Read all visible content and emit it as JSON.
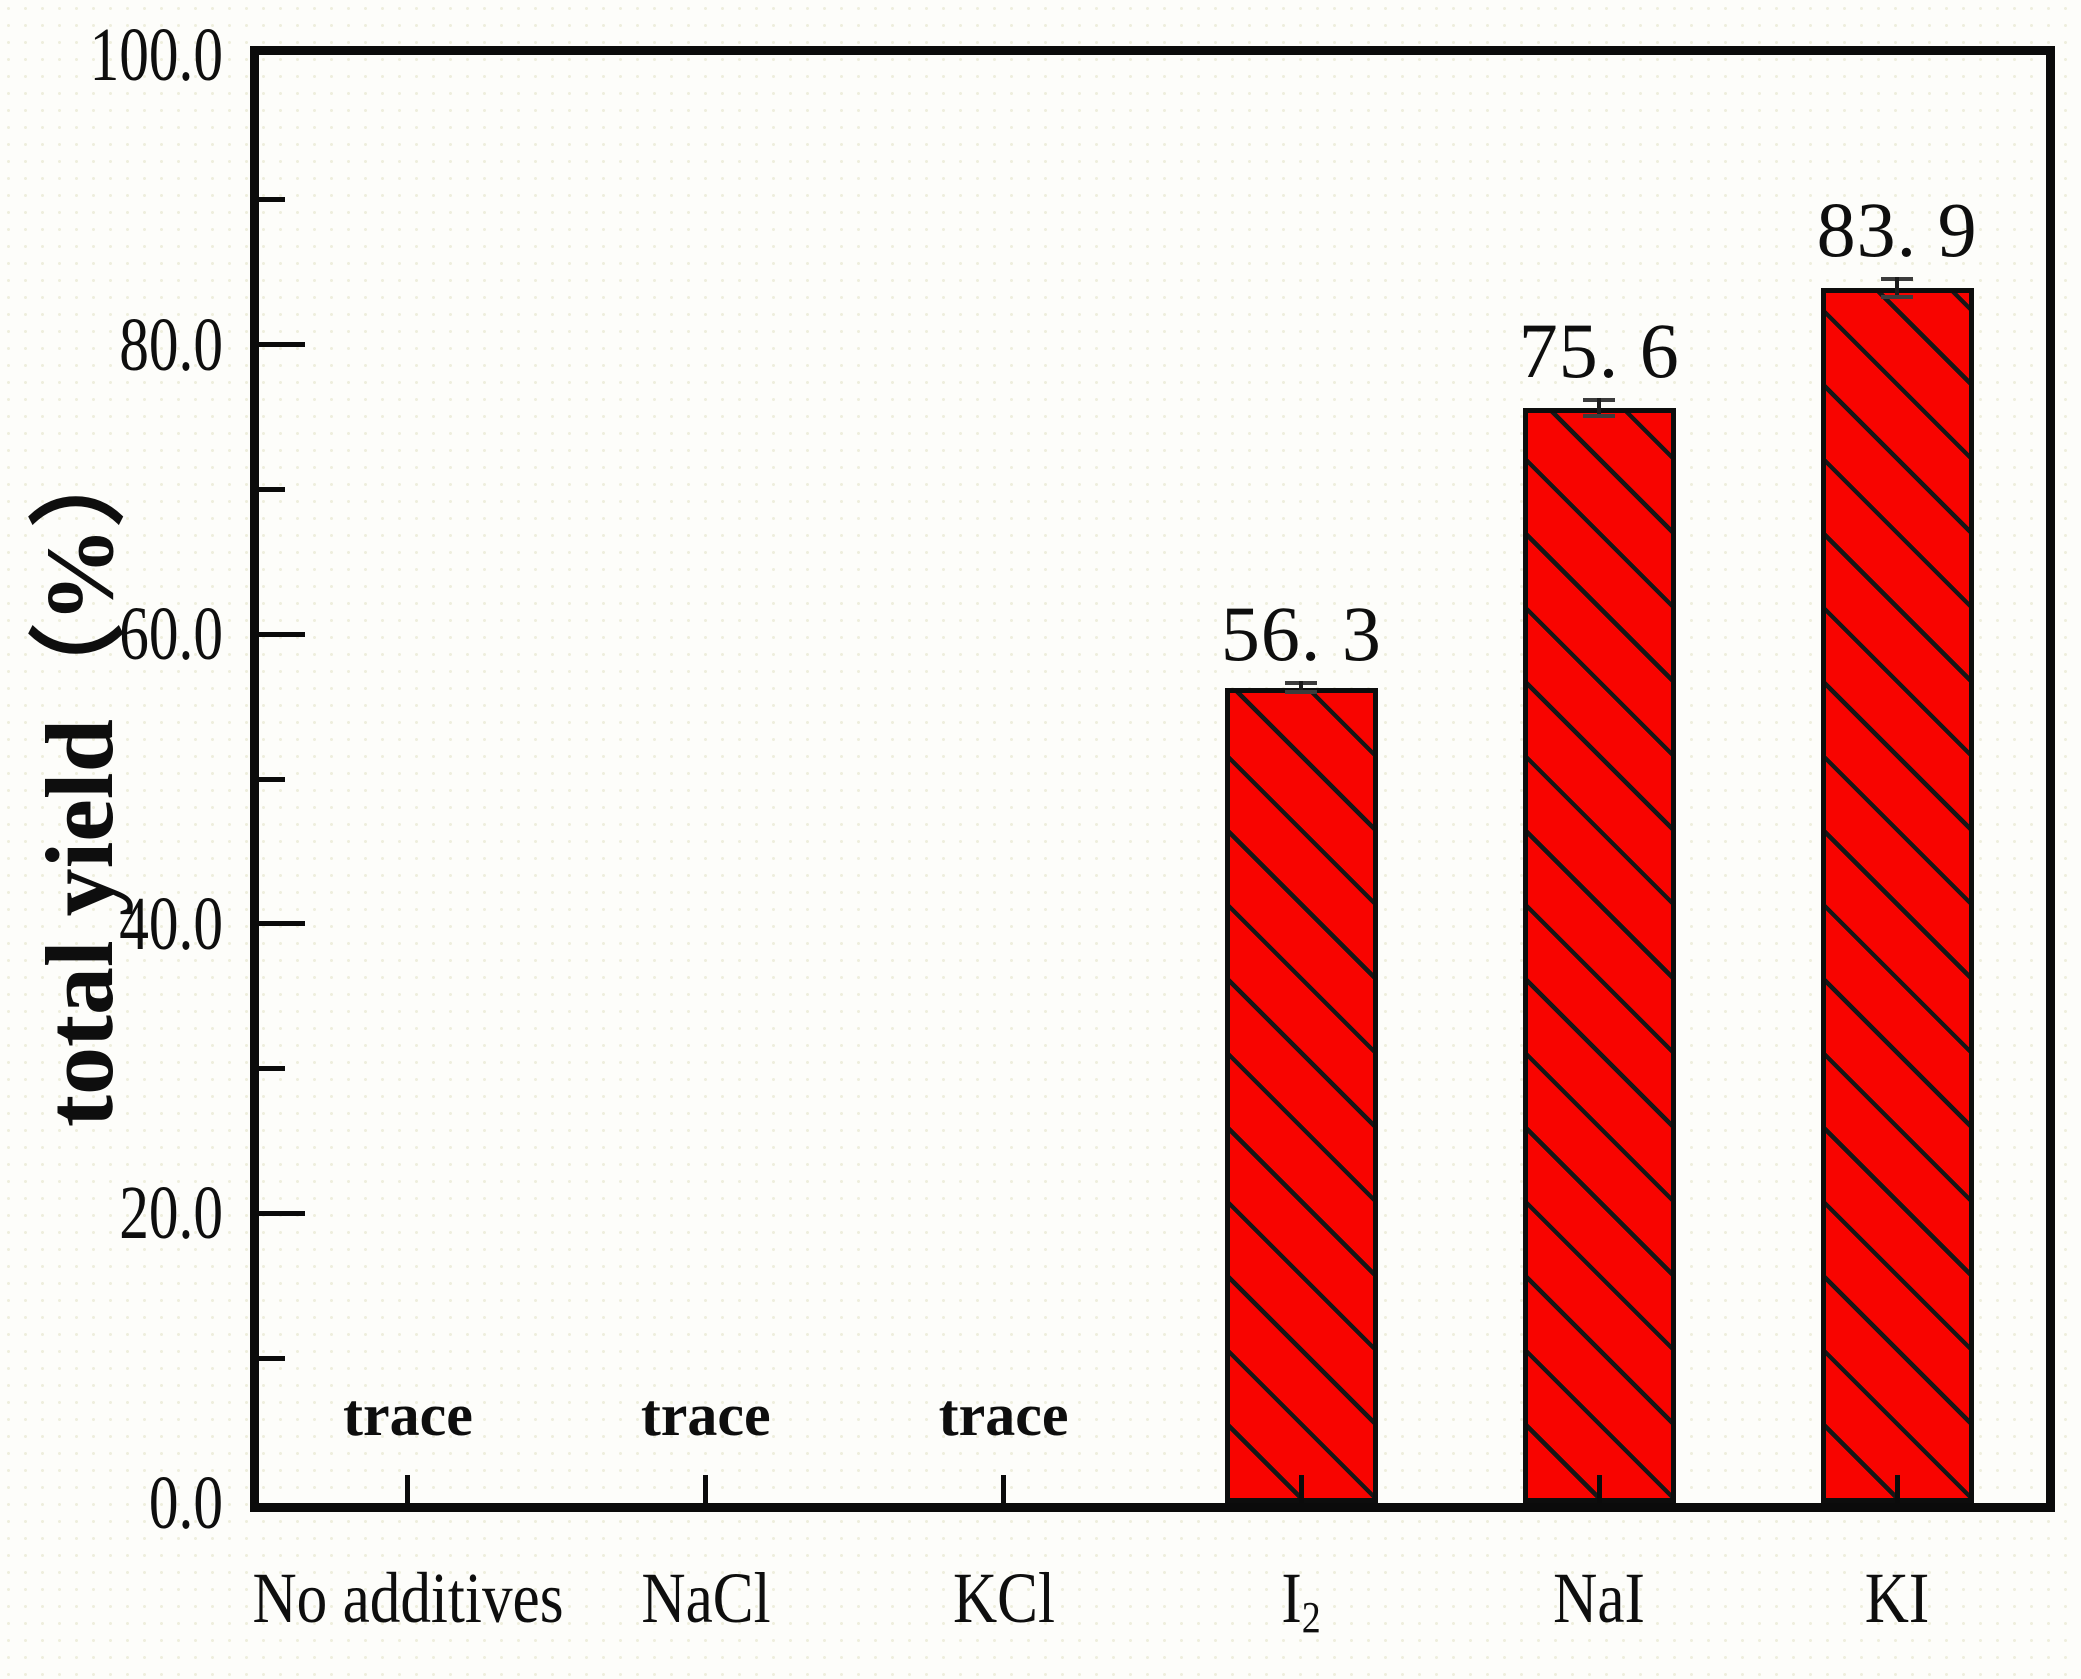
{
  "figure": {
    "background": "#fdfdfa",
    "frame_color": "#0b0b0b"
  },
  "chart_data": {
    "type": "bar",
    "title": "",
    "xlabel": "",
    "ylabel": "total yield（%）",
    "ylim": [
      0,
      100
    ],
    "ytick_major_step": 20,
    "ytick_minor_step": 10,
    "grid": false,
    "legend": null,
    "categories": [
      "No additives",
      "NaCl",
      "KCl",
      "I2",
      "NaI",
      "KI"
    ],
    "values": [
      null,
      null,
      null,
      56.3,
      75.6,
      83.9
    ],
    "errors": [
      null,
      null,
      null,
      0.3,
      0.55,
      0.6
    ],
    "bar_labels": [
      null,
      null,
      null,
      "56. 3",
      "75. 6",
      "83. 9"
    ],
    "zero_bar_annotation": "trace",
    "bar_color": "#f80400",
    "hatch": "diagonal-down-black",
    "bar_border_color": "#0d0d0d"
  },
  "y_axis": {
    "title": "total yield（%）",
    "tick_labels": [
      "100.0",
      "80.0",
      "60.0",
      "40.0",
      "20.0",
      "0.0"
    ]
  },
  "x_axis": {
    "labels": [
      {
        "main": "No additives",
        "sub": ""
      },
      {
        "main": "NaCl",
        "sub": ""
      },
      {
        "main": "KCl",
        "sub": ""
      },
      {
        "main": "I",
        "sub": "2"
      },
      {
        "main": "NaI",
        "sub": ""
      },
      {
        "main": "KI",
        "sub": ""
      }
    ]
  },
  "annotations": {
    "trace_labels": [
      "trace",
      "trace",
      "trace"
    ],
    "value_labels": [
      "56. 3",
      "75. 6",
      "83. 9"
    ]
  }
}
